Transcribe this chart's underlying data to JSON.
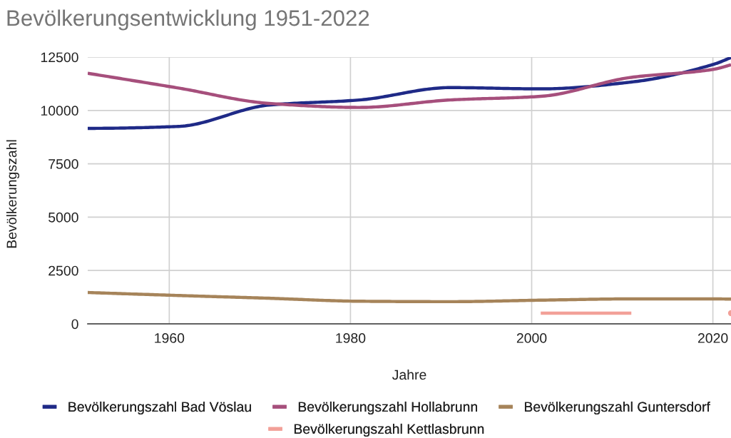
{
  "chart_data": {
    "type": "line",
    "title": "Bevölkerungsentwicklung 1951-2022",
    "xlabel": "Jahre",
    "ylabel": "Bevölkerungszahl",
    "x": [
      1951,
      1961,
      1971,
      1981,
      1991,
      2001,
      2011,
      2020,
      2022
    ],
    "xlim": [
      1951,
      2022
    ],
    "xticks": [
      1960,
      1980,
      2000,
      2020
    ],
    "ylim": [
      0,
      12500
    ],
    "yticks": [
      0,
      2500,
      5000,
      7500,
      10000,
      12500
    ],
    "grid": true,
    "legend": "bottom",
    "line_style": "solid",
    "series": [
      {
        "name": "Bevölkerungszahl Bad Vöslau",
        "color": "#1f2a87",
        "values": [
          9160,
          9250,
          10250,
          10490,
          11070,
          11010,
          11330,
          12150,
          12480
        ]
      },
      {
        "name": "Bevölkerungszahl Hollabrunn",
        "color": "#a64f7c",
        "values": [
          11740,
          11050,
          10330,
          10140,
          10490,
          10660,
          11550,
          11920,
          12140
        ]
      },
      {
        "name": "Bevölkerungszahl Guntersdorf",
        "color": "#a6845a",
        "values": [
          1470,
          1330,
          1200,
          1060,
          1040,
          1110,
          1170,
          1170,
          1160
        ]
      },
      {
        "name": "Bevölkerungszahl Kettlasbrunn",
        "color": "#f2a098",
        "values": [
          null,
          null,
          null,
          null,
          null,
          500,
          500,
          null,
          500
        ]
      }
    ]
  }
}
